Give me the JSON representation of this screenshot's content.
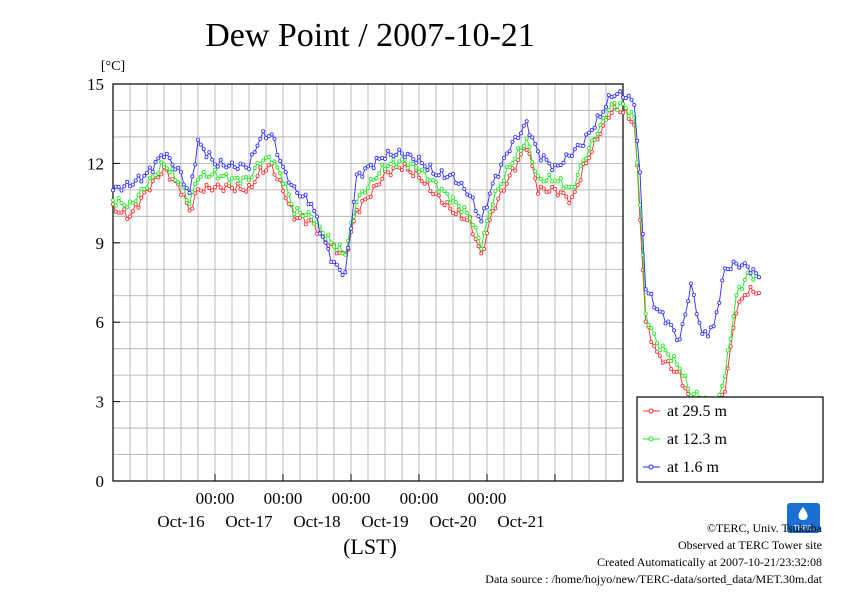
{
  "chart_data": {
    "type": "scatter",
    "title": "Dew Point / 2007-10-21",
    "ylabel_unit": "[°C]",
    "xlabel": "(LST)",
    "ylim": [
      0,
      15
    ],
    "yticks": [
      "0",
      "3",
      "6",
      "9",
      "12",
      "15"
    ],
    "xlim_hours": [
      -36,
      144
    ],
    "xtick_time_label": "00:00",
    "xtick_dates": [
      "Oct-16",
      "Oct-17",
      "Oct-18",
      "Oct-19",
      "Oct-20",
      "Oct-21"
    ],
    "grid": true,
    "legend_position": "lower-right",
    "series": [
      {
        "name": "at 29.5 m",
        "color": "#ff2a2a",
        "points": [
          [
            -36,
            10.3
          ],
          [
            -30,
            10.0
          ],
          [
            -24,
            11.0
          ],
          [
            -18,
            11.8
          ],
          [
            -12,
            11.0
          ],
          [
            -9,
            10.2
          ],
          [
            -6,
            11.0
          ],
          [
            0,
            11.1
          ],
          [
            6,
            11.1
          ],
          [
            12,
            11.0
          ],
          [
            16,
            11.7
          ],
          [
            20,
            11.9
          ],
          [
            24,
            11.0
          ],
          [
            28,
            10.0
          ],
          [
            34,
            9.8
          ],
          [
            38,
            9.2
          ],
          [
            42,
            8.8
          ],
          [
            46,
            8.5
          ],
          [
            50,
            10.2
          ],
          [
            56,
            11.0
          ],
          [
            60,
            11.6
          ],
          [
            66,
            11.9
          ],
          [
            72,
            11.5
          ],
          [
            78,
            10.8
          ],
          [
            84,
            10.2
          ],
          [
            90,
            9.8
          ],
          [
            94,
            8.5
          ],
          [
            98,
            10.2
          ],
          [
            104,
            11.5
          ],
          [
            110,
            12.7
          ],
          [
            114,
            11.0
          ],
          [
            120,
            11.0
          ],
          [
            126,
            10.6
          ],
          [
            130,
            11.8
          ],
          [
            136,
            13.2
          ],
          [
            140,
            14.0
          ],
          [
            144,
            14.0
          ],
          [
            148,
            13.5
          ],
          [
            150,
            10.0
          ],
          [
            152,
            6.0
          ],
          [
            156,
            4.8
          ],
          [
            160,
            4.4
          ],
          [
            164,
            4.0
          ],
          [
            168,
            3.0
          ],
          [
            172,
            2.8
          ],
          [
            176,
            2.3
          ],
          [
            180,
            3.5
          ],
          [
            184,
            6.5
          ],
          [
            188,
            7.2
          ],
          [
            192,
            7.1
          ]
        ]
      },
      {
        "name": "at 12.3 m",
        "color": "#1ce81c",
        "points": [
          [
            -36,
            10.6
          ],
          [
            -30,
            10.4
          ],
          [
            -24,
            11.2
          ],
          [
            -18,
            12.0
          ],
          [
            -12,
            11.2
          ],
          [
            -9,
            10.5
          ],
          [
            -6,
            11.5
          ],
          [
            0,
            11.6
          ],
          [
            6,
            11.4
          ],
          [
            12,
            11.4
          ],
          [
            16,
            12.1
          ],
          [
            20,
            12.2
          ],
          [
            24,
            11.4
          ],
          [
            28,
            10.2
          ],
          [
            34,
            10.0
          ],
          [
            38,
            9.4
          ],
          [
            42,
            8.9
          ],
          [
            46,
            8.6
          ],
          [
            50,
            10.6
          ],
          [
            56,
            11.4
          ],
          [
            60,
            11.9
          ],
          [
            66,
            12.1
          ],
          [
            72,
            11.8
          ],
          [
            78,
            11.2
          ],
          [
            84,
            10.6
          ],
          [
            90,
            10.0
          ],
          [
            94,
            8.9
          ],
          [
            98,
            10.6
          ],
          [
            104,
            11.9
          ],
          [
            110,
            12.9
          ],
          [
            114,
            11.4
          ],
          [
            120,
            11.4
          ],
          [
            126,
            11.0
          ],
          [
            130,
            12.1
          ],
          [
            136,
            13.4
          ],
          [
            140,
            14.2
          ],
          [
            144,
            14.2
          ],
          [
            148,
            13.7
          ],
          [
            150,
            10.5
          ],
          [
            152,
            6.3
          ],
          [
            156,
            5.2
          ],
          [
            160,
            4.8
          ],
          [
            164,
            4.3
          ],
          [
            168,
            3.3
          ],
          [
            172,
            3.2
          ],
          [
            176,
            2.6
          ],
          [
            180,
            4.0
          ],
          [
            184,
            7.0
          ],
          [
            188,
            7.8
          ],
          [
            192,
            7.7
          ]
        ]
      },
      {
        "name": "at 1.6 m",
        "color": "#2a2aff",
        "points": [
          [
            -36,
            11.0
          ],
          [
            -30,
            11.2
          ],
          [
            -24,
            11.6
          ],
          [
            -18,
            12.4
          ],
          [
            -12,
            11.6
          ],
          [
            -9,
            10.8
          ],
          [
            -6,
            12.8
          ],
          [
            0,
            12.0
          ],
          [
            6,
            11.9
          ],
          [
            12,
            11.9
          ],
          [
            16,
            13.0
          ],
          [
            20,
            13.1
          ],
          [
            24,
            11.8
          ],
          [
            28,
            11.0
          ],
          [
            34,
            10.5
          ],
          [
            38,
            9.2
          ],
          [
            42,
            8.2
          ],
          [
            46,
            7.8
          ],
          [
            50,
            11.5
          ],
          [
            56,
            12.0
          ],
          [
            60,
            12.3
          ],
          [
            66,
            12.4
          ],
          [
            72,
            12.1
          ],
          [
            78,
            11.6
          ],
          [
            84,
            11.5
          ],
          [
            90,
            10.8
          ],
          [
            94,
            9.8
          ],
          [
            98,
            11.2
          ],
          [
            104,
            12.6
          ],
          [
            110,
            13.5
          ],
          [
            114,
            12.4
          ],
          [
            120,
            11.8
          ],
          [
            126,
            12.4
          ],
          [
            130,
            12.8
          ],
          [
            136,
            13.8
          ],
          [
            140,
            14.6
          ],
          [
            144,
            14.6
          ],
          [
            148,
            14.3
          ],
          [
            150,
            11.5
          ],
          [
            152,
            7.3
          ],
          [
            156,
            6.5
          ],
          [
            160,
            6.0
          ],
          [
            164,
            5.3
          ],
          [
            168,
            7.4
          ],
          [
            172,
            5.5
          ],
          [
            176,
            5.8
          ],
          [
            180,
            8.0
          ],
          [
            184,
            8.2
          ],
          [
            188,
            8.1
          ],
          [
            192,
            7.7
          ]
        ]
      }
    ]
  },
  "footer": {
    "copyright": "©TERC, Univ. Tsukuba",
    "observed": "Observed at TERC Tower site",
    "created": "Created Automatically at 2007-10-21/23:32:08",
    "source": "Data source : /home/hojyo/new/TERC-data/sorted_data/MET.30m.dat",
    "logo_text": "TERC",
    "logo_color": "#1a6fd0"
  }
}
